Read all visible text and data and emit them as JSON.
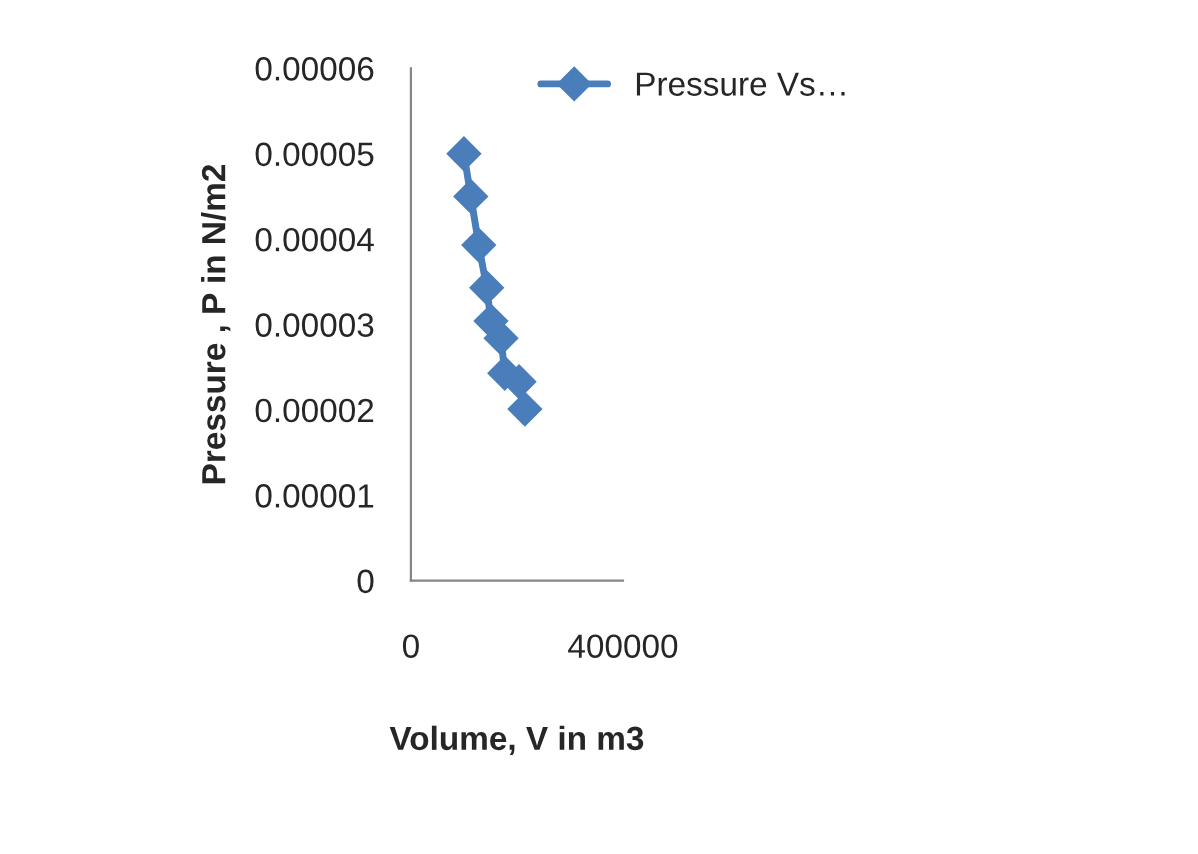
{
  "chart_data": {
    "type": "line",
    "xlabel": "Volume, V in m3",
    "ylabel": "Pressure , P in N/m2",
    "x": [
      100000,
      113000,
      128000,
      143000,
      151000,
      170000,
      177000,
      204000,
      215000
    ],
    "series": [
      {
        "name": "Pressure Vs…",
        "color": "#4a7ebb",
        "values": [
          5e-05,
          4.5e-05,
          3.93e-05,
          3.43e-05,
          3.04e-05,
          2.84e-05,
          2.43e-05,
          2.33e-05,
          2.01e-05
        ]
      }
    ],
    "xlim": [
      0,
      400000
    ],
    "xticks": [
      0,
      400000
    ],
    "ylim": [
      0,
      6e-05
    ],
    "yticks": [
      {
        "value": 0,
        "label": "0"
      },
      {
        "value": 1e-05,
        "label": "0.00001"
      },
      {
        "value": 2e-05,
        "label": "0.00002"
      },
      {
        "value": 3e-05,
        "label": "0.00003"
      },
      {
        "value": 4e-05,
        "label": "0.00004"
      },
      {
        "value": 5e-05,
        "label": "0.00005"
      },
      {
        "value": 6e-05,
        "label": "0.00006"
      }
    ],
    "marker": "diamond",
    "legend": "top right"
  }
}
